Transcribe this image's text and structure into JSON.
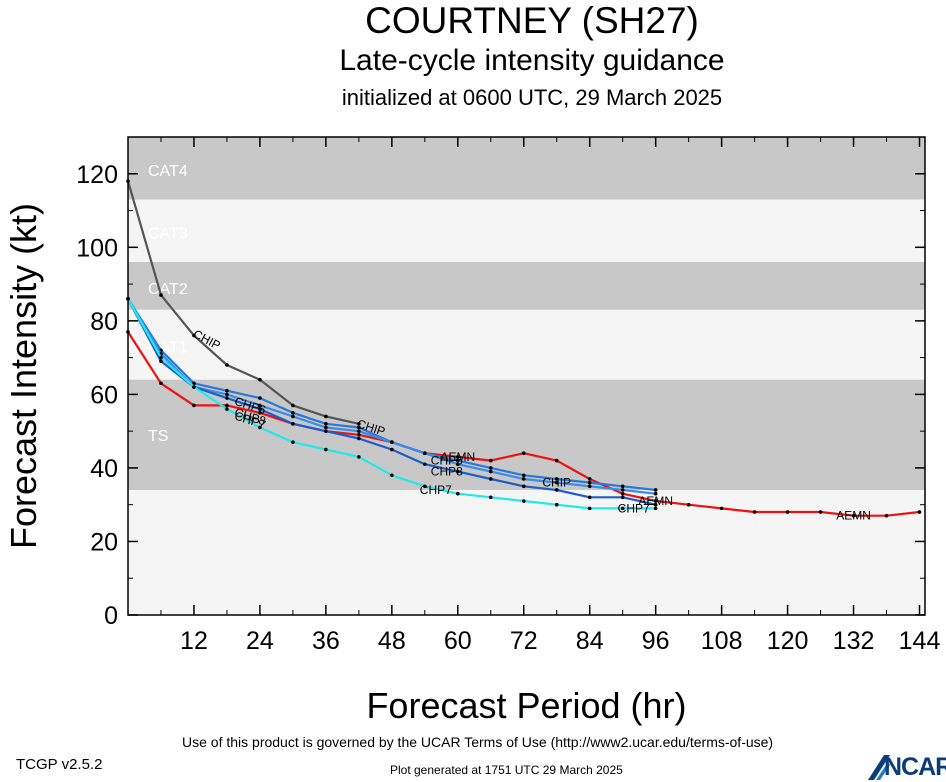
{
  "header": {
    "title": "COURTNEY (SH27)",
    "subtitle": "Late-cycle intensity guidance",
    "init": "initialized at 0600 UTC, 29 March 2025"
  },
  "footer": {
    "terms": "Use of this product is governed by the UCAR Terms of Use (http://www2.ucar.edu/terms-of-use)",
    "version": "TCGP v2.5.2",
    "generated": "Plot generated at 1751 UTC   29 March 2025",
    "logo": "NCAR"
  },
  "chart_data": {
    "type": "line",
    "xlabel": "Forecast Period (hr)",
    "ylabel": "Forecast Intensity (kt)",
    "xlim": [
      0,
      145
    ],
    "ylim": [
      0,
      130
    ],
    "xticks": [
      12,
      24,
      36,
      48,
      60,
      72,
      84,
      96,
      108,
      120,
      132,
      144
    ],
    "yticks": [
      0,
      20,
      40,
      60,
      80,
      100,
      120
    ],
    "bands": [
      {
        "label": "CAT4",
        "ymin": 113,
        "ymax": 130,
        "color": "#c8c8c8",
        "label_y": 121
      },
      {
        "label": "CAT3",
        "ymin": 96,
        "ymax": 113,
        "color": "#f5f5f5",
        "label_y": 104
      },
      {
        "label": "CAT2",
        "ymin": 83,
        "ymax": 96,
        "color": "#c8c8c8",
        "label_y": 89
      },
      {
        "label": "CAT1",
        "ymin": 64,
        "ymax": 83,
        "color": "#f5f5f5",
        "label_y": 73
      },
      {
        "label": "TS",
        "ymin": 34,
        "ymax": 64,
        "color": "#c8c8c8",
        "label_y": 49
      },
      {
        "label": "",
        "ymin": 0,
        "ymax": 34,
        "color": "#f5f5f5",
        "label_y": 0
      }
    ],
    "series": [
      {
        "name": "AEMN",
        "color": "#ee1111",
        "x": [
          0,
          6,
          12,
          18,
          24,
          30,
          36,
          42,
          48,
          54,
          60,
          66,
          72,
          78,
          84,
          90,
          96,
          102,
          108,
          114,
          120,
          126,
          132,
          138,
          144
        ],
        "y": [
          77,
          63,
          57,
          57,
          55,
          52,
          50,
          49,
          47,
          44,
          43,
          42,
          44,
          42,
          37,
          33,
          31,
          30,
          29,
          28,
          28,
          28,
          27,
          27,
          28
        ],
        "labels": [
          {
            "x": 60,
            "y": 43
          },
          {
            "x": 96,
            "y": 31
          },
          {
            "x": 132,
            "y": 27
          }
        ]
      },
      {
        "name": "CHIP",
        "color": "#555555",
        "x": [
          0,
          6,
          12,
          18,
          24,
          30,
          36,
          42
        ],
        "y": [
          118,
          87,
          76,
          68,
          64,
          57,
          54,
          52
        ],
        "labels": [
          {
            "x": 14,
            "y": 75
          },
          {
            "x": 44,
            "y": 51
          }
        ]
      },
      {
        "name": "CHIP",
        "color": "#2a78dc",
        "x": [
          0,
          6,
          12,
          18,
          24,
          30,
          36,
          42,
          48,
          54,
          60,
          66,
          72,
          78,
          84,
          90,
          96
        ],
        "y": [
          86,
          72,
          63,
          61,
          59,
          55,
          52,
          51,
          47,
          44,
          42,
          40,
          38,
          37,
          36,
          35,
          34
        ],
        "labels": [
          {
            "x": 78,
            "y": 36
          }
        ]
      },
      {
        "name": "CHP6",
        "color": "#3a8ce8",
        "x": [
          0,
          6,
          12,
          18,
          24,
          30,
          36,
          42,
          48,
          54,
          60,
          66,
          72,
          78,
          84,
          90,
          96
        ],
        "y": [
          86,
          71,
          62,
          60,
          57,
          54,
          51,
          50,
          47,
          44,
          41,
          39,
          37,
          36,
          35,
          34,
          33
        ],
        "labels": [
          {
            "x": 22,
            "y": 57
          },
          {
            "x": 58,
            "y": 42
          }
        ]
      },
      {
        "name": "CHP8",
        "color": "#1c5ec8",
        "x": [
          0,
          6,
          12,
          18,
          24,
          30,
          36,
          42,
          48,
          54,
          60,
          66,
          72,
          78,
          84,
          90,
          96
        ],
        "y": [
          86,
          69,
          62,
          59,
          56,
          52,
          50,
          48,
          45,
          41,
          39,
          37,
          35,
          34,
          32,
          32,
          30
        ],
        "labels": [
          {
            "x": 22,
            "y": 54
          },
          {
            "x": 58,
            "y": 39
          }
        ]
      },
      {
        "name": "CHP7",
        "color": "#22e8e8",
        "x": [
          0,
          6,
          12,
          18,
          24,
          30,
          36,
          42,
          48,
          54,
          60,
          66,
          72,
          78,
          84,
          90,
          96
        ],
        "y": [
          86,
          70,
          62,
          56,
          51,
          47,
          45,
          43,
          38,
          35,
          33,
          32,
          31,
          30,
          29,
          29,
          29
        ],
        "labels": [
          {
            "x": 22,
            "y": 53
          },
          {
            "x": 56,
            "y": 34
          },
          {
            "x": 92,
            "y": 29
          }
        ]
      }
    ]
  }
}
